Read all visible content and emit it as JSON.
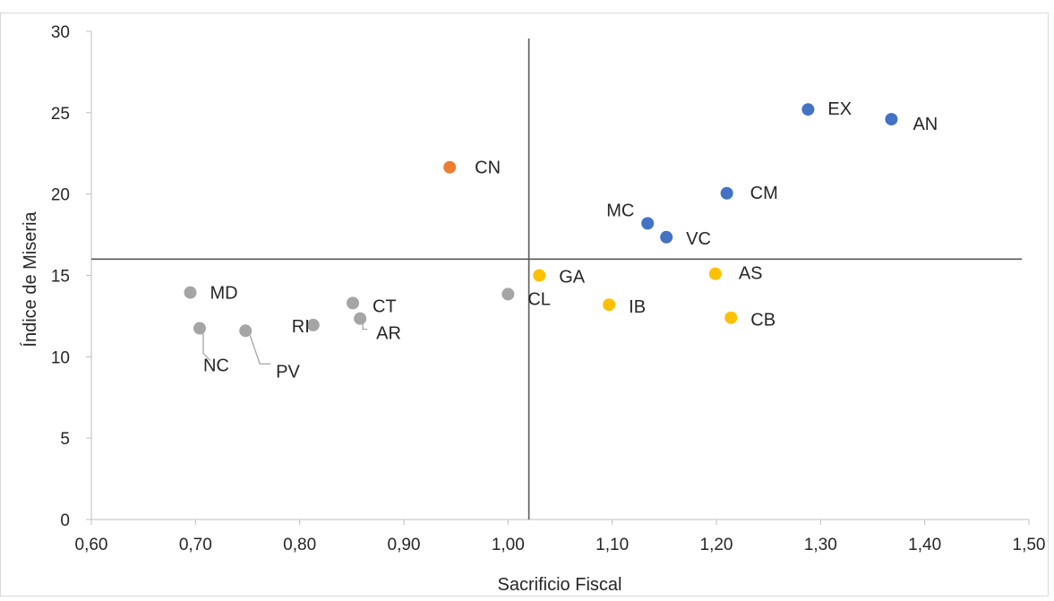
{
  "chart_data": {
    "type": "scatter",
    "title": "",
    "xlabel": "Sacrificio Fiscal",
    "ylabel": "Índice de Miseria",
    "xlim": [
      0.6,
      1.5
    ],
    "ylim": [
      0,
      30
    ],
    "x_ticks": [
      "0,60",
      "0,70",
      "0,80",
      "0,90",
      "1,00",
      "1,10",
      "1,20",
      "1,30",
      "1,40",
      "1,50"
    ],
    "y_ticks": [
      "0",
      "5",
      "10",
      "15",
      "20",
      "25",
      "30"
    ],
    "grid": "none",
    "legend": "none",
    "reference_lines": {
      "x": 1.02,
      "y": 16.0
    },
    "colors": {
      "high": "#4472C4",
      "orange": "#ED7D31",
      "yellow": "#FFC000",
      "gray": "#A5A5A5"
    },
    "points": [
      {
        "label": "EX",
        "x": 1.288,
        "y": 25.2,
        "group": "high"
      },
      {
        "label": "AN",
        "x": 1.368,
        "y": 24.6,
        "group": "high"
      },
      {
        "label": "CM",
        "x": 1.21,
        "y": 20.05,
        "group": "high"
      },
      {
        "label": "MC",
        "x": 1.134,
        "y": 18.2,
        "group": "high"
      },
      {
        "label": "VC",
        "x": 1.152,
        "y": 17.35,
        "group": "high"
      },
      {
        "label": "CN",
        "x": 0.944,
        "y": 21.65,
        "group": "orange"
      },
      {
        "label": "GA",
        "x": 1.03,
        "y": 15.0,
        "group": "yellow"
      },
      {
        "label": "AS",
        "x": 1.199,
        "y": 15.1,
        "group": "yellow"
      },
      {
        "label": "IB",
        "x": 1.097,
        "y": 13.2,
        "group": "yellow"
      },
      {
        "label": "CB",
        "x": 1.214,
        "y": 12.4,
        "group": "yellow"
      },
      {
        "label": "CL",
        "x": 1.0,
        "y": 13.85,
        "group": "gray"
      },
      {
        "label": "MD",
        "x": 0.695,
        "y": 13.95,
        "group": "gray"
      },
      {
        "label": "CT",
        "x": 0.851,
        "y": 13.3,
        "group": "gray"
      },
      {
        "label": "RI",
        "x": 0.813,
        "y": 11.95,
        "group": "gray"
      },
      {
        "label": "AR",
        "x": 0.858,
        "y": 12.35,
        "group": "gray"
      },
      {
        "label": "NC",
        "x": 0.704,
        "y": 11.75,
        "group": "gray"
      },
      {
        "label": "PV",
        "x": 0.748,
        "y": 11.6,
        "group": "gray"
      }
    ]
  }
}
